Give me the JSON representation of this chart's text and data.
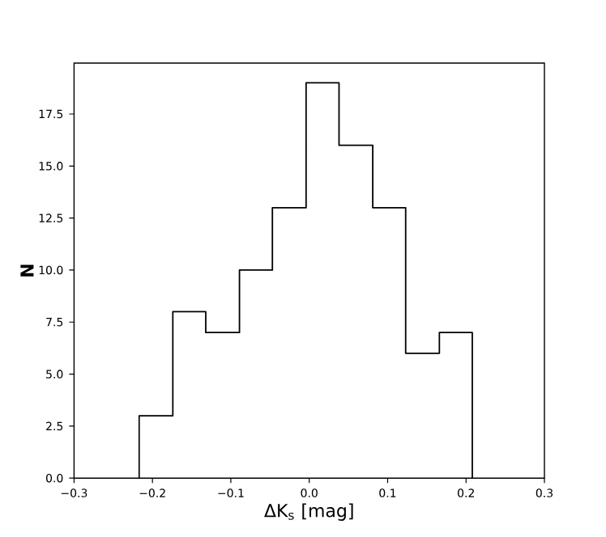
{
  "chart_data": {
    "type": "histogram",
    "xlabel": "ΔK$_{s}$ [mag]",
    "ylabel": "N",
    "bins": [
      -0.217,
      -0.174,
      -0.132,
      -0.089,
      -0.047,
      -0.004,
      0.038,
      0.081,
      0.123,
      0.166,
      0.208
    ],
    "values": [
      3,
      8,
      7,
      10,
      13,
      19,
      16,
      13,
      6,
      7
    ],
    "color": "#000000",
    "xlim": [
      -0.3,
      0.3
    ],
    "ylim": [
      0,
      19.95
    ],
    "xticks": [
      {
        "value": -0.3,
        "label": "−0.3"
      },
      {
        "value": -0.2,
        "label": "−0.2"
      },
      {
        "value": -0.1,
        "label": "−0.1"
      },
      {
        "value": 0,
        "label": "0.0"
      },
      {
        "value": 0.1,
        "label": "0.1"
      },
      {
        "value": 0.2,
        "label": "0.2"
      },
      {
        "value": 0.3,
        "label": "0.3"
      }
    ],
    "yticks": [
      {
        "value": 0,
        "label": "0.0"
      },
      {
        "value": 2.5,
        "label": "2.5"
      },
      {
        "value": 5,
        "label": "5.0"
      },
      {
        "value": 7.5,
        "label": "7.5"
      },
      {
        "value": 10,
        "label": "10.0"
      },
      {
        "value": 12.5,
        "label": "12.5"
      },
      {
        "value": 15,
        "label": "15.0"
      },
      {
        "value": 17.5,
        "label": "17.5"
      }
    ],
    "line_style": "solid"
  }
}
